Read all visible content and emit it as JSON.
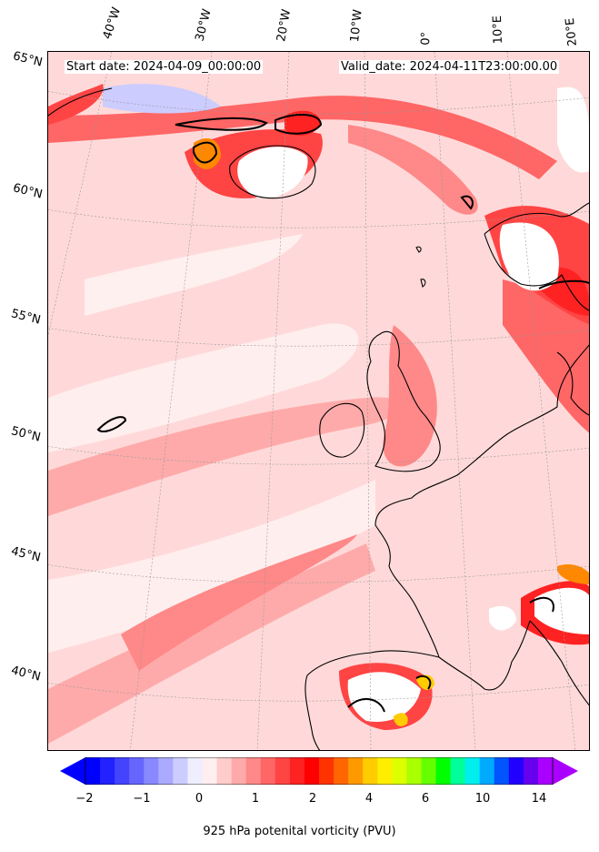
{
  "header": {
    "start_date": "Start date: 2024-04-09_00:00:00",
    "valid_date": "Valid_date: 2024-04-11T23:00:00.00"
  },
  "longitude_labels": [
    "40°W",
    "30°W",
    "20°W",
    "10°W",
    "0°",
    "10°E",
    "20°E"
  ],
  "latitude_labels": [
    "65°N",
    "60°N",
    "55°N",
    "50°N",
    "45°N",
    "40°N"
  ],
  "colorbar": {
    "label": "925 hPa potenital vorticity (PVU)",
    "tick_labels": [
      "−2",
      "−1",
      "0",
      "1",
      "2",
      "4",
      "6",
      "10",
      "14"
    ],
    "colors": [
      "#0000ff",
      "#2222ff",
      "#4444ff",
      "#6666ff",
      "#8888ff",
      "#aaaaff",
      "#ccccff",
      "#eeeeff",
      "#ffeeee",
      "#ffcccc",
      "#ffaaaa",
      "#ff8888",
      "#ff6666",
      "#ff4444",
      "#ff2222",
      "#ff0000",
      "#ff3300",
      "#ff6600",
      "#ff9900",
      "#ffcc00",
      "#ffee00",
      "#ddff00",
      "#aaff00",
      "#66ff00",
      "#00ff00",
      "#00ff99",
      "#00eeee",
      "#00aaff",
      "#0055ff",
      "#2200ff",
      "#6600ee",
      "#aa00ff"
    ]
  },
  "map": {
    "field_colors": {
      "background": "#ffd9d9",
      "light": "#ffeeee",
      "medium": "#ffaaaa",
      "strong": "#ff6666",
      "very_strong": "#ff2222",
      "orange": "#ff8800",
      "yellow": "#ffcc00",
      "blue": "#ccccff"
    }
  }
}
